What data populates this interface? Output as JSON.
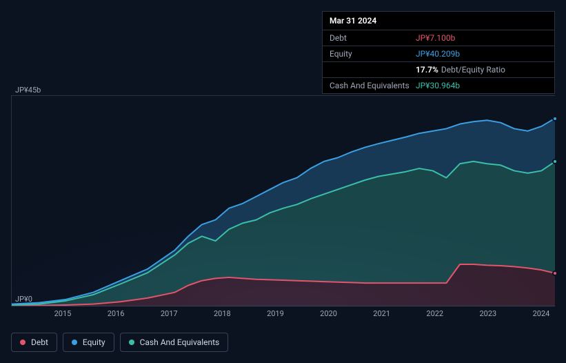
{
  "info": {
    "title": "Mar 31 2024",
    "rows": [
      {
        "label": "Debt",
        "value": "JP¥7.100b",
        "color": "#e2556a"
      },
      {
        "label": "Equity",
        "value": "JP¥40.209b",
        "color": "#3b9fe2"
      },
      {
        "label": "",
        "value_pct": "17.7%",
        "value_txt": "Debt/Equity Ratio",
        "is_ratio": true
      },
      {
        "label": "Cash And Equivalents",
        "value": "JP¥30.964b",
        "color": "#3bbfa8"
      }
    ]
  },
  "chart": {
    "type": "area",
    "ylim": [
      0,
      45
    ],
    "ylabel_top": "JP¥45b",
    "ylabel_bot": "JP¥0",
    "xlim": [
      2014.25,
      2024.25
    ],
    "xticks": [
      "2015",
      "2016",
      "2017",
      "2018",
      "2019",
      "2020",
      "2021",
      "2022",
      "2023",
      "2024"
    ],
    "background_color": "#0b1220",
    "grid_color": "#2a3342",
    "series": {
      "equity": {
        "stroke": "#3b9fe2",
        "fill": "rgba(59,159,226,0.28)",
        "fill_to": "cash",
        "points": [
          [
            2014.25,
            0.5
          ],
          [
            2014.75,
            0.8
          ],
          [
            2015.25,
            1.5
          ],
          [
            2015.75,
            3.0
          ],
          [
            2016.25,
            5.5
          ],
          [
            2016.75,
            8.0
          ],
          [
            2017.25,
            12.0
          ],
          [
            2017.5,
            15.0
          ],
          [
            2017.75,
            17.5
          ],
          [
            2018.0,
            18.5
          ],
          [
            2018.25,
            21.0
          ],
          [
            2018.5,
            22.0
          ],
          [
            2018.75,
            23.5
          ],
          [
            2019.0,
            25.0
          ],
          [
            2019.25,
            26.5
          ],
          [
            2019.5,
            27.5
          ],
          [
            2019.75,
            29.5
          ],
          [
            2020.0,
            31.0
          ],
          [
            2020.25,
            31.8
          ],
          [
            2020.5,
            33.0
          ],
          [
            2020.75,
            34.0
          ],
          [
            2021.0,
            34.8
          ],
          [
            2021.25,
            35.5
          ],
          [
            2021.5,
            36.2
          ],
          [
            2021.75,
            37.0
          ],
          [
            2022.0,
            37.5
          ],
          [
            2022.25,
            38.0
          ],
          [
            2022.5,
            39.0
          ],
          [
            2022.75,
            39.5
          ],
          [
            2023.0,
            39.8
          ],
          [
            2023.25,
            39.3
          ],
          [
            2023.5,
            38.0
          ],
          [
            2023.75,
            37.5
          ],
          [
            2024.0,
            38.5
          ],
          [
            2024.25,
            40.2
          ]
        ]
      },
      "cash": {
        "stroke": "#3bbfa8",
        "fill": "rgba(59,191,168,0.30)",
        "fill_to": "debt",
        "points": [
          [
            2014.25,
            0.3
          ],
          [
            2014.75,
            0.5
          ],
          [
            2015.25,
            1.2
          ],
          [
            2015.75,
            2.5
          ],
          [
            2016.25,
            4.8
          ],
          [
            2016.75,
            7.2
          ],
          [
            2017.25,
            11.0
          ],
          [
            2017.5,
            13.5
          ],
          [
            2017.75,
            15.0
          ],
          [
            2018.0,
            14.0
          ],
          [
            2018.25,
            16.5
          ],
          [
            2018.5,
            17.8
          ],
          [
            2018.75,
            18.5
          ],
          [
            2019.0,
            20.0
          ],
          [
            2019.25,
            21.0
          ],
          [
            2019.5,
            21.8
          ],
          [
            2019.75,
            23.0
          ],
          [
            2020.0,
            24.0
          ],
          [
            2020.25,
            25.0
          ],
          [
            2020.5,
            26.0
          ],
          [
            2020.75,
            27.0
          ],
          [
            2021.0,
            27.8
          ],
          [
            2021.25,
            28.3
          ],
          [
            2021.5,
            28.8
          ],
          [
            2021.75,
            29.5
          ],
          [
            2022.0,
            29.0
          ],
          [
            2022.25,
            27.5
          ],
          [
            2022.5,
            30.5
          ],
          [
            2022.75,
            31.0
          ],
          [
            2023.0,
            30.5
          ],
          [
            2023.25,
            30.2
          ],
          [
            2023.5,
            29.0
          ],
          [
            2023.75,
            28.5
          ],
          [
            2024.0,
            29.0
          ],
          [
            2024.25,
            30.96
          ]
        ]
      },
      "debt": {
        "stroke": "#e2556a",
        "fill": "rgba(226,85,106,0.20)",
        "fill_to": "zero",
        "points": [
          [
            2014.25,
            0.1
          ],
          [
            2014.75,
            0.2
          ],
          [
            2015.25,
            0.3
          ],
          [
            2015.75,
            0.5
          ],
          [
            2016.25,
            1.0
          ],
          [
            2016.75,
            1.8
          ],
          [
            2017.25,
            3.0
          ],
          [
            2017.5,
            4.5
          ],
          [
            2017.75,
            5.5
          ],
          [
            2018.0,
            6.0
          ],
          [
            2018.25,
            6.2
          ],
          [
            2018.5,
            6.0
          ],
          [
            2018.75,
            5.8
          ],
          [
            2019.0,
            5.7
          ],
          [
            2019.25,
            5.6
          ],
          [
            2019.5,
            5.5
          ],
          [
            2019.75,
            5.4
          ],
          [
            2020.0,
            5.3
          ],
          [
            2020.25,
            5.2
          ],
          [
            2020.5,
            5.1
          ],
          [
            2020.75,
            5.0
          ],
          [
            2021.0,
            5.0
          ],
          [
            2021.25,
            5.0
          ],
          [
            2021.5,
            5.0
          ],
          [
            2021.75,
            5.0
          ],
          [
            2022.0,
            5.0
          ],
          [
            2022.25,
            5.0
          ],
          [
            2022.5,
            9.0
          ],
          [
            2022.75,
            9.0
          ],
          [
            2023.0,
            8.8
          ],
          [
            2023.25,
            8.7
          ],
          [
            2023.5,
            8.5
          ],
          [
            2023.75,
            8.2
          ],
          [
            2024.0,
            7.8
          ],
          [
            2024.25,
            7.1
          ]
        ]
      }
    },
    "legend": [
      {
        "label": "Debt",
        "color": "#e2556a",
        "key": "debt"
      },
      {
        "label": "Equity",
        "color": "#3b9fe2",
        "key": "equity"
      },
      {
        "label": "Cash And Equivalents",
        "color": "#3bbfa8",
        "key": "cash"
      }
    ]
  }
}
